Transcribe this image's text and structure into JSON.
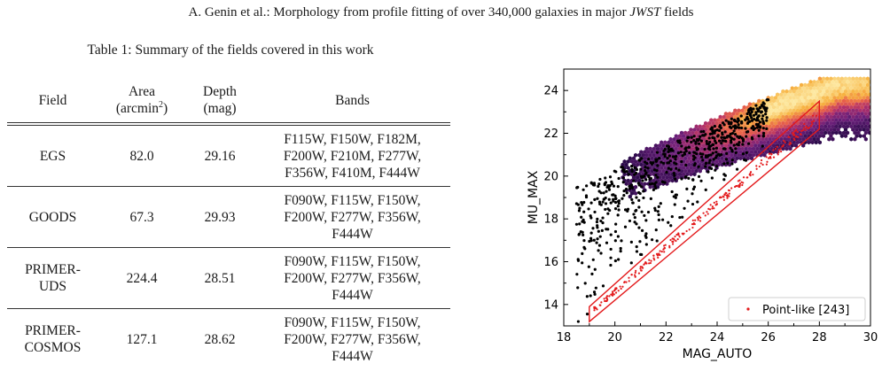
{
  "header": {
    "authors": "A. Genin et al.:",
    "title_pre": "Morphology from profile fitting of over 340,000 galaxies in major",
    "title_em": "JWST",
    "title_post": "fields"
  },
  "table": {
    "caption": "Table 1: Summary of the fields covered in this work",
    "columns": {
      "field": "Field",
      "area_top": "Area",
      "area_unit_base": "(arcmin",
      "area_unit_exp": "2",
      "area_unit_close": ")",
      "depth_top": "Depth",
      "depth_unit": "(mag)",
      "bands": "Bands"
    },
    "rows": [
      {
        "field_lines": [
          "EGS"
        ],
        "area": "82.0",
        "depth": "29.16",
        "bands_lines": [
          "F115W, F150W, F182M,",
          "F200W, F210M, F277W,",
          "F356W, F410M, F444W"
        ]
      },
      {
        "field_lines": [
          "GOODS"
        ],
        "area": "67.3",
        "depth": "29.93",
        "bands_lines": [
          "F090W, F115W, F150W,",
          "F200W, F277W, F356W,",
          "F444W"
        ]
      },
      {
        "field_lines": [
          "PRIMER-",
          "UDS"
        ],
        "area": "224.4",
        "depth": "28.51",
        "bands_lines": [
          "F090W, F115W, F150W,",
          "F200W, F277W, F356W,",
          "F444W"
        ]
      },
      {
        "field_lines": [
          "PRIMER-",
          "COSMOS"
        ],
        "area": "127.1",
        "depth": "28.62",
        "bands_lines": [
          "F090W, F115W, F150W,",
          "F200W, F277W, F356W,",
          "F444W"
        ]
      }
    ]
  },
  "chart_data": {
    "type": "scatter",
    "xlabel": "MAG_AUTO",
    "ylabel": "MU_MAX",
    "xlim": [
      18,
      30
    ],
    "ylim": [
      13,
      25
    ],
    "xticks": [
      18,
      20,
      22,
      24,
      26,
      28,
      30
    ],
    "yticks": [
      14,
      16,
      18,
      20,
      22,
      24
    ],
    "grid": false,
    "legend": {
      "placement": "bottom-right",
      "entries": [
        "Point-like [243]"
      ]
    },
    "density_colormap": [
      "#2b0a4a",
      "#6a1f7a",
      "#b0306a",
      "#e8604a",
      "#f7b240",
      "#fde8a0"
    ],
    "selection_box": {
      "color": "#e31a1c",
      "vertices": [
        [
          19.0,
          13.2
        ],
        [
          19.0,
          13.9
        ],
        [
          28.0,
          23.5
        ],
        [
          28.0,
          22.2
        ]
      ]
    },
    "point_like": {
      "name": "Point-like [243]",
      "color": "#e31a1c",
      "x_range": [
        19.1,
        27.9
      ],
      "count": 243
    }
  }
}
